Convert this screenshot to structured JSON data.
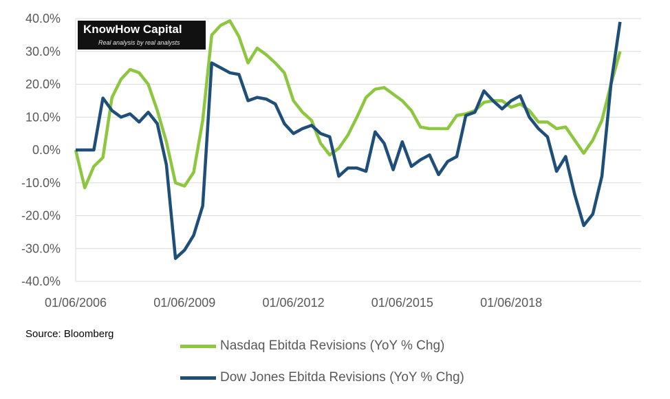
{
  "logo": {
    "title": "KnowHow Capital",
    "subtitle": "Real analysis by real analysts"
  },
  "source": "Source: Bloomberg",
  "chart_data": {
    "type": "line",
    "title": "",
    "xlabel": "",
    "ylabel": "",
    "x_unit": "year",
    "xlim": [
      2006.42,
      2022.0
    ],
    "ylim": [
      -40,
      40
    ],
    "y_ticks": [
      "-40.0%",
      "-30.0%",
      "-20.0%",
      "-10.0%",
      "0.0%",
      "10.0%",
      "20.0%",
      "30.0%",
      "40.0%"
    ],
    "y_tick_values": [
      -40,
      -30,
      -20,
      -10,
      0,
      10,
      20,
      30,
      40
    ],
    "x_ticks": [
      "01/06/2006",
      "01/06/2009",
      "01/06/2012",
      "01/06/2015",
      "01/06/2018"
    ],
    "x_tick_values": [
      2006.42,
      2009.42,
      2012.42,
      2015.42,
      2018.42
    ],
    "grid": "horizontal",
    "legend_position": "bottom",
    "series": [
      {
        "name": "Nasdaq Ebitda Revisions (YoY % Chg)",
        "color": "#8dc63f",
        "points": [
          [
            2006.42,
            0.0
          ],
          [
            2006.67,
            -11.5
          ],
          [
            2006.92,
            -5.0
          ],
          [
            2007.17,
            -2.3
          ],
          [
            2007.42,
            16.0
          ],
          [
            2007.67,
            21.5
          ],
          [
            2007.92,
            24.5
          ],
          [
            2008.17,
            23.5
          ],
          [
            2008.42,
            20.0
          ],
          [
            2008.67,
            12.0
          ],
          [
            2008.92,
            2.5
          ],
          [
            2009.17,
            -10.0
          ],
          [
            2009.42,
            -11.0
          ],
          [
            2009.67,
            -6.8
          ],
          [
            2009.92,
            9.0
          ],
          [
            2010.17,
            35.0
          ],
          [
            2010.42,
            38.0
          ],
          [
            2010.67,
            39.3
          ],
          [
            2010.92,
            34.5
          ],
          [
            2011.17,
            26.5
          ],
          [
            2011.42,
            31.0
          ],
          [
            2011.67,
            29.0
          ],
          [
            2011.92,
            26.5
          ],
          [
            2012.17,
            23.5
          ],
          [
            2012.42,
            15.0
          ],
          [
            2012.67,
            11.5
          ],
          [
            2012.92,
            9.0
          ],
          [
            2013.17,
            2.0
          ],
          [
            2013.42,
            -1.5
          ],
          [
            2013.67,
            0.5
          ],
          [
            2013.92,
            4.5
          ],
          [
            2014.17,
            10.0
          ],
          [
            2014.42,
            16.0
          ],
          [
            2014.67,
            18.5
          ],
          [
            2014.92,
            19.0
          ],
          [
            2015.17,
            17.0
          ],
          [
            2015.42,
            15.0
          ],
          [
            2015.67,
            12.0
          ],
          [
            2015.92,
            7.0
          ],
          [
            2016.17,
            6.5
          ],
          [
            2016.42,
            6.5
          ],
          [
            2016.67,
            6.5
          ],
          [
            2016.92,
            10.5
          ],
          [
            2017.17,
            11.0
          ],
          [
            2017.42,
            12.0
          ],
          [
            2017.67,
            14.5
          ],
          [
            2017.92,
            15.0
          ],
          [
            2018.17,
            15.0
          ],
          [
            2018.42,
            13.0
          ],
          [
            2018.67,
            14.0
          ],
          [
            2018.92,
            12.0
          ],
          [
            2019.17,
            8.5
          ],
          [
            2019.42,
            8.5
          ],
          [
            2019.67,
            6.5
          ],
          [
            2019.92,
            7.0
          ],
          [
            2020.17,
            3.0
          ],
          [
            2020.42,
            -1.0
          ],
          [
            2020.67,
            3.0
          ],
          [
            2020.92,
            9.0
          ],
          [
            2021.17,
            20.0
          ],
          [
            2021.42,
            30.0
          ]
        ]
      },
      {
        "name": "Dow Jones Ebitda Revisions (YoY % Chg)",
        "color": "#1f4e79",
        "points": [
          [
            2006.42,
            0.0
          ],
          [
            2006.67,
            0.0
          ],
          [
            2006.92,
            0.0
          ],
          [
            2007.17,
            15.8
          ],
          [
            2007.42,
            12.0
          ],
          [
            2007.67,
            10.0
          ],
          [
            2007.92,
            11.0
          ],
          [
            2008.17,
            8.5
          ],
          [
            2008.42,
            11.5
          ],
          [
            2008.67,
            8.0
          ],
          [
            2008.92,
            -4.5
          ],
          [
            2009.17,
            -33.0
          ],
          [
            2009.42,
            -30.5
          ],
          [
            2009.67,
            -26.0
          ],
          [
            2009.92,
            -17.0
          ],
          [
            2010.17,
            26.5
          ],
          [
            2010.42,
            25.0
          ],
          [
            2010.67,
            23.5
          ],
          [
            2010.92,
            23.0
          ],
          [
            2011.17,
            15.0
          ],
          [
            2011.42,
            16.0
          ],
          [
            2011.67,
            15.5
          ],
          [
            2011.92,
            14.0
          ],
          [
            2012.17,
            8.0
          ],
          [
            2012.42,
            5.0
          ],
          [
            2012.67,
            6.5
          ],
          [
            2012.92,
            7.5
          ],
          [
            2013.17,
            5.0
          ],
          [
            2013.42,
            4.0
          ],
          [
            2013.67,
            -8.0
          ],
          [
            2013.92,
            -5.5
          ],
          [
            2014.17,
            -5.5
          ],
          [
            2014.42,
            -6.5
          ],
          [
            2014.67,
            5.5
          ],
          [
            2014.92,
            2.0
          ],
          [
            2015.17,
            -6.0
          ],
          [
            2015.42,
            2.5
          ],
          [
            2015.67,
            -5.0
          ],
          [
            2015.92,
            -3.0
          ],
          [
            2016.17,
            -1.5
          ],
          [
            2016.42,
            -7.5
          ],
          [
            2016.67,
            -3.5
          ],
          [
            2016.92,
            -2.0
          ],
          [
            2017.17,
            10.5
          ],
          [
            2017.42,
            11.5
          ],
          [
            2017.67,
            18.0
          ],
          [
            2017.92,
            15.0
          ],
          [
            2018.17,
            12.5
          ],
          [
            2018.42,
            15.0
          ],
          [
            2018.67,
            16.5
          ],
          [
            2018.92,
            10.0
          ],
          [
            2019.17,
            6.5
          ],
          [
            2019.42,
            4.0
          ],
          [
            2019.67,
            -6.5
          ],
          [
            2019.92,
            -2.0
          ],
          [
            2020.17,
            -13.5
          ],
          [
            2020.42,
            -23.0
          ],
          [
            2020.67,
            -19.5
          ],
          [
            2020.92,
            -8.0
          ],
          [
            2021.17,
            20.0
          ],
          [
            2021.42,
            39.0
          ]
        ]
      }
    ]
  }
}
